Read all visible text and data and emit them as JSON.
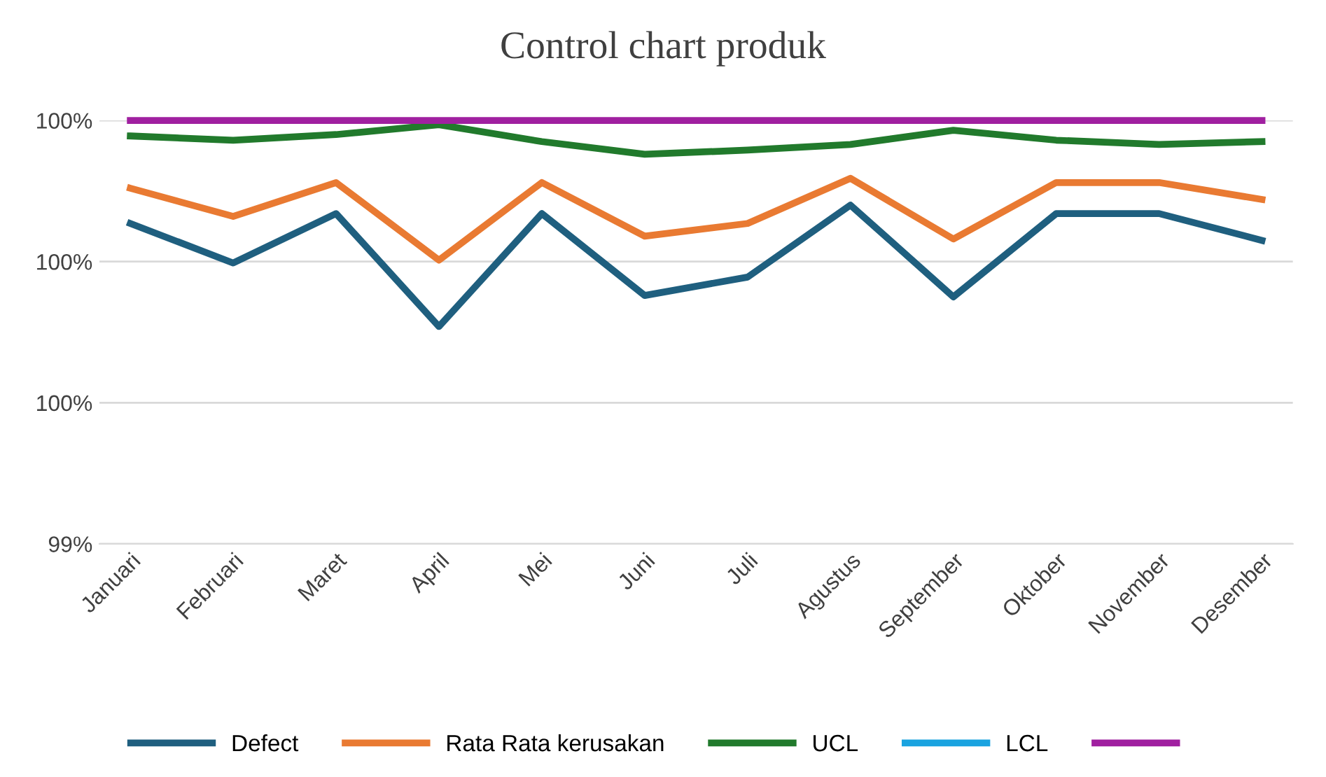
{
  "chart_data": {
    "type": "line",
    "title": "Control chart produk",
    "categories": [
      "Januari",
      "Februari",
      "Maret",
      "April",
      "Mei",
      "Juni",
      "Juli",
      "Agustus",
      "September",
      "Oktober",
      "November",
      "Desember"
    ],
    "series": [
      {
        "name": "Defect",
        "color": "#1f5f7f",
        "values": [
          99.854,
          99.798,
          99.868,
          99.708,
          99.868,
          99.752,
          99.778,
          99.88,
          99.75,
          99.868,
          99.868,
          99.83
        ]
      },
      {
        "name": "Rata Rata kerusakan",
        "color": "#e97a32",
        "values": [
          99.904,
          99.864,
          99.912,
          99.802,
          99.912,
          99.836,
          99.854,
          99.918,
          99.832,
          99.912,
          99.912,
          99.888
        ]
      },
      {
        "name": "UCL",
        "color": "#217a2c",
        "values": [
          99.978,
          99.972,
          99.98,
          99.994,
          99.97,
          99.952,
          99.958,
          99.966,
          99.986,
          99.972,
          99.966,
          99.97
        ]
      },
      {
        "name": "LCL",
        "color": "#1aa3e0",
        "values": [
          null,
          null,
          null,
          null,
          null,
          null,
          null,
          null,
          null,
          null,
          null,
          null
        ]
      },
      {
        "color": "#a020a0",
        "values": [
          100.0,
          100.0,
          100.0,
          100.0,
          100.0,
          100.0,
          100.0,
          100.0,
          100.0,
          100.0,
          100.0,
          100.0
        ]
      }
    ],
    "ylim": [
      99.4,
      100.0
    ],
    "yticks": [
      {
        "value": 99.4,
        "label": "99%"
      },
      {
        "value": 99.6,
        "label": "100%"
      },
      {
        "value": 99.8,
        "label": "100%"
      },
      {
        "value": 100.0,
        "label": "100%"
      }
    ],
    "grid": "y",
    "legend": "bottom",
    "marker": "none",
    "line_style": "solid"
  }
}
